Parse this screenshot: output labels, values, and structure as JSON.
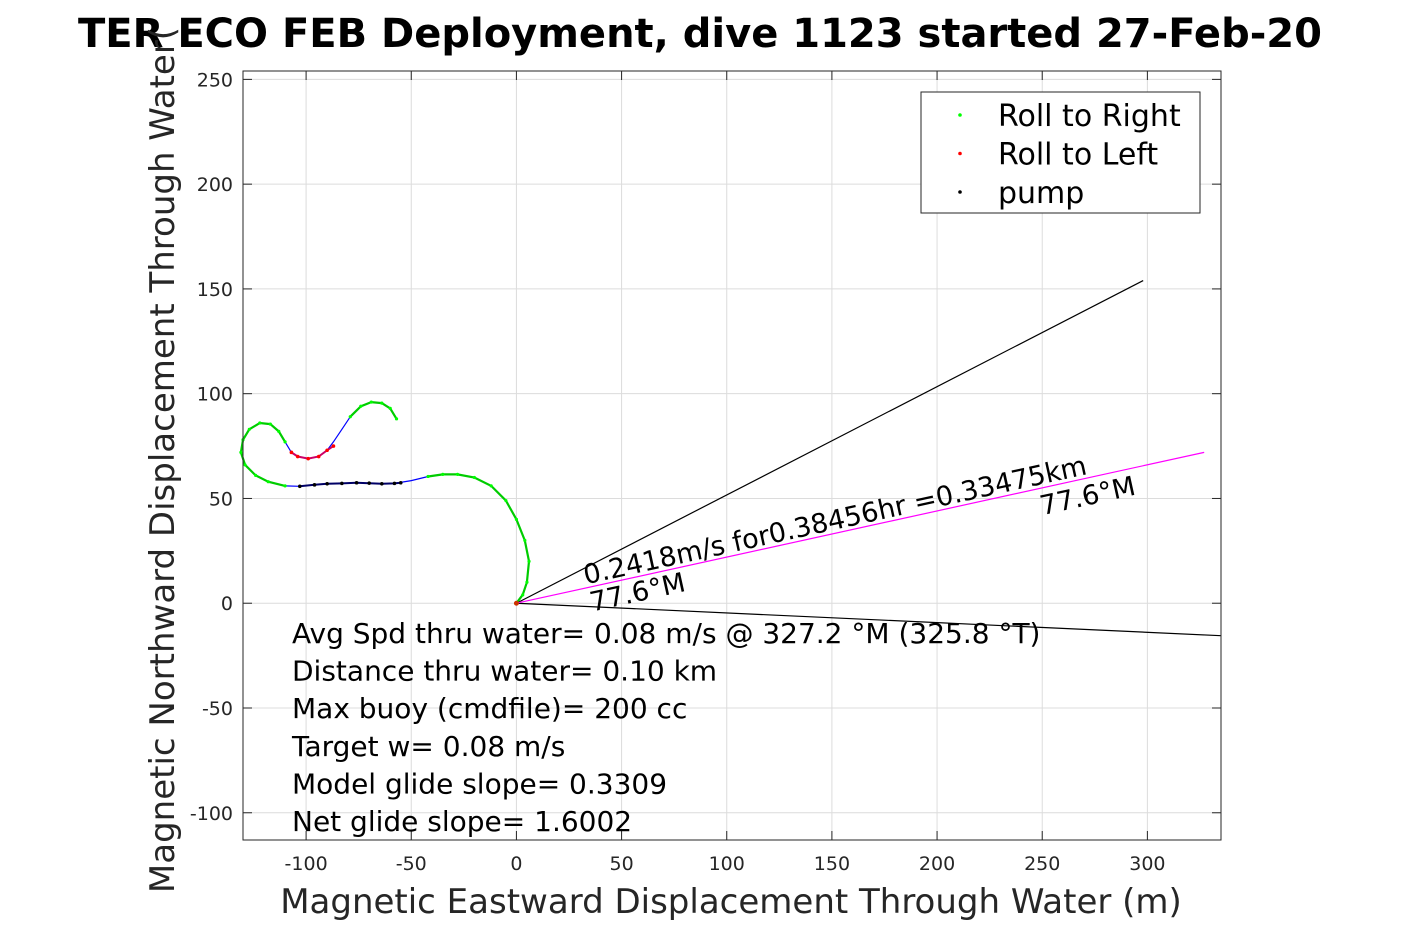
{
  "chart_data": {
    "type": "scatter",
    "title": "TER ECO FEB Deployment, dive 1123 started 27-Feb-20",
    "xlabel": "Magnetic Eastward Displacement Through Water (m)",
    "ylabel": "Magnetic Northward Displacement Through Water(",
    "xlim": [
      -130,
      335
    ],
    "ylim": [
      -113,
      254
    ],
    "xticks": [
      -100,
      -50,
      0,
      50,
      100,
      150,
      200,
      250,
      300
    ],
    "yticks": [
      -100,
      -50,
      0,
      50,
      100,
      150,
      200,
      250
    ],
    "xtick_labels": [
      "-100",
      "-50",
      "0",
      "50",
      "100",
      "150",
      "200",
      "250",
      "300"
    ],
    "ytick_labels": [
      "-100",
      "-50",
      "0",
      "50",
      "100",
      "150",
      "200",
      "250"
    ],
    "grid": true,
    "legend_position": "top-right",
    "legend": [
      {
        "label": "Roll to Right",
        "color": "#00ff00"
      },
      {
        "label": "Roll to Left",
        "color": "#ff0000"
      },
      {
        "label": "pump",
        "color": "#000000"
      }
    ],
    "track": {
      "color": "#0000ff",
      "points": [
        [
          -57,
          88
        ],
        [
          -60,
          93
        ],
        [
          -64,
          95.5
        ],
        [
          -69,
          96
        ],
        [
          -74,
          94
        ],
        [
          -79,
          89
        ],
        [
          -83,
          83
        ],
        [
          -87,
          77
        ],
        [
          -90,
          73
        ],
        [
          -94,
          70
        ],
        [
          -99,
          69
        ],
        [
          -104,
          70
        ],
        [
          -107,
          72
        ],
        [
          -110,
          77
        ],
        [
          -113,
          82
        ],
        [
          -117,
          85.5
        ],
        [
          -122,
          86
        ],
        [
          -127,
          83
        ],
        [
          -130,
          78
        ],
        [
          -131,
          72
        ],
        [
          -129,
          66
        ],
        [
          -124,
          61
        ],
        [
          -118,
          58
        ],
        [
          -110,
          56
        ],
        [
          -103,
          55.8
        ],
        [
          -96,
          56.5
        ],
        [
          -90,
          57
        ],
        [
          -83,
          57.2
        ],
        [
          -76,
          57.5
        ],
        [
          -70,
          57.3
        ],
        [
          -64,
          57
        ],
        [
          -58,
          57.2
        ],
        [
          -50,
          58.5
        ],
        [
          -42,
          60.5
        ],
        [
          -35,
          61.5
        ],
        [
          -28,
          61.5
        ],
        [
          -20,
          60
        ],
        [
          -12,
          56
        ],
        [
          -5,
          49
        ],
        [
          0,
          40
        ],
        [
          4,
          30
        ],
        [
          6,
          20
        ],
        [
          5,
          10
        ],
        [
          3,
          4
        ],
        [
          0,
          0
        ]
      ]
    },
    "roll_right_segments": [
      [
        [
          -57,
          88
        ],
        [
          -60,
          93
        ],
        [
          -64,
          95.5
        ],
        [
          -69,
          96
        ],
        [
          -74,
          94
        ],
        [
          -79,
          89
        ]
      ],
      [
        [
          -110,
          77
        ],
        [
          -113,
          82
        ],
        [
          -117,
          85.5
        ],
        [
          -122,
          86
        ],
        [
          -127,
          83
        ],
        [
          -130,
          78
        ],
        [
          -131,
          72
        ],
        [
          -129,
          66
        ],
        [
          -124,
          61
        ],
        [
          -118,
          58
        ],
        [
          -110,
          56
        ]
      ],
      [
        [
          -42,
          60.5
        ],
        [
          -35,
          61.5
        ],
        [
          -28,
          61.5
        ],
        [
          -20,
          60
        ],
        [
          -12,
          56
        ],
        [
          -5,
          49
        ],
        [
          0,
          40
        ],
        [
          4,
          30
        ],
        [
          6,
          20
        ],
        [
          5,
          10
        ],
        [
          3,
          4
        ],
        [
          0,
          0
        ]
      ]
    ],
    "roll_left_segment": [
      [
        -87,
        75
      ],
      [
        -90,
        73
      ],
      [
        -94,
        70
      ],
      [
        -99,
        69
      ],
      [
        -104,
        70
      ],
      [
        -107,
        72
      ]
    ],
    "pump_segment": [
      [
        -103,
        55.8
      ],
      [
        -96,
        56.5
      ],
      [
        -90,
        57
      ],
      [
        -83,
        57.2
      ],
      [
        -76,
        57.5
      ],
      [
        -70,
        57.3
      ],
      [
        -64,
        57
      ],
      [
        -58,
        57.2
      ],
      [
        -55,
        57.5
      ]
    ],
    "lines": [
      {
        "from": [
          0,
          0
        ],
        "to": [
          298,
          154
        ],
        "color": "#000000"
      },
      {
        "from": [
          0,
          0
        ],
        "to": [
          335,
          -15.5
        ],
        "color": "#000000"
      },
      {
        "from": [
          0,
          0
        ],
        "to": [
          327,
          72
        ],
        "color": "#ff00ff"
      }
    ],
    "line_annotations": [
      {
        "text": "0.2418m/s for0.38456hr =0.33475km",
        "x": 33,
        "y": 9,
        "angle_deg": 12.4
      },
      {
        "text": "77.6°M",
        "x": 36,
        "y": -4,
        "angle_deg": 12.4
      },
      {
        "text": "77.6°M",
        "x": 250,
        "y": 42,
        "angle_deg": 12.4
      }
    ],
    "annotations": [
      "Avg Spd thru water=  0.08 m/s @ 327.2 °M (325.8 °T)",
      "Distance thru water=  0.10 km",
      "Max buoy (cmdfile)= 200 cc",
      "Target w= 0.08 m/s",
      "Model glide slope= 0.3309",
      "Net glide slope= 1.6002"
    ]
  }
}
